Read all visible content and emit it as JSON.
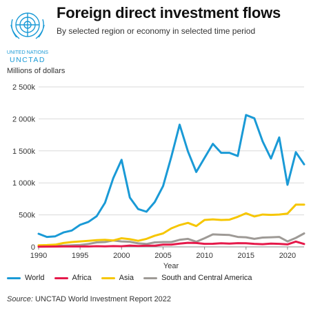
{
  "org": {
    "line1": "UNITED NATIONS",
    "line2": "UNCTAD"
  },
  "colors": {
    "World": "#1a9ad6",
    "Africa": "#e5194a",
    "Asia": "#f6c600",
    "South and Central America": "#9e9a96",
    "grid": "#d9d9d9",
    "axis": "#888888",
    "logo": "#1a9ad6"
  },
  "chart_data": {
    "type": "line",
    "title": "Foreign direct investment flows",
    "subtitle": "By selected region or economy in selected time period",
    "ylabel": "Millions of dollars",
    "xlabel": "Year",
    "x": [
      1990,
      1991,
      1992,
      1993,
      1994,
      1995,
      1996,
      1997,
      1998,
      1999,
      2000,
      2001,
      2002,
      2003,
      2004,
      2005,
      2006,
      2007,
      2008,
      2009,
      2010,
      2011,
      2012,
      2013,
      2014,
      2015,
      2016,
      2017,
      2018,
      2019,
      2020,
      2021,
      2022
    ],
    "xlim": [
      1990,
      2022
    ],
    "ylim": [
      0,
      2500000
    ],
    "xticks": [
      1990,
      1995,
      2000,
      2005,
      2010,
      2015,
      2020
    ],
    "yticks": [
      0,
      500000,
      1000000,
      1500000,
      2000000,
      2500000
    ],
    "ytick_labels": [
      "0",
      "500k",
      "1 000k",
      "1 500k",
      "2 000k",
      "2 500k"
    ],
    "grid": "horizontal",
    "legend_position": "bottom",
    "series": [
      {
        "name": "World",
        "values": [
          205000,
          155000,
          165000,
          225000,
          255000,
          345000,
          390000,
          480000,
          690000,
          1075000,
          1360000,
          770000,
          590000,
          550000,
          700000,
          950000,
          1410000,
          1910000,
          1490000,
          1170000,
          1390000,
          1610000,
          1470000,
          1470000,
          1420000,
          2060000,
          2010000,
          1650000,
          1380000,
          1710000,
          970000,
          1480000,
          1290000
        ]
      },
      {
        "name": "Africa",
        "values": [
          3000,
          4000,
          5000,
          6000,
          6000,
          6000,
          6000,
          11000,
          9000,
          12000,
          10000,
          20000,
          13000,
          19000,
          18000,
          35000,
          36000,
          51000,
          64000,
          60000,
          47000,
          48000,
          56000,
          52000,
          58000,
          56000,
          47000,
          42000,
          51000,
          47000,
          39000,
          83000,
          45000
        ]
      },
      {
        "name": "Asia",
        "values": [
          25000,
          28000,
          35000,
          60000,
          75000,
          85000,
          95000,
          105000,
          110000,
          100000,
          135000,
          120000,
          95000,
          125000,
          175000,
          210000,
          290000,
          340000,
          375000,
          325000,
          420000,
          430000,
          420000,
          425000,
          470000,
          525000,
          475000,
          505000,
          500000,
          505000,
          520000,
          660000,
          660000
        ]
      },
      {
        "name": "South and Central America",
        "values": [
          10000,
          15000,
          18000,
          18000,
          25000,
          30000,
          45000,
          70000,
          75000,
          100000,
          85000,
          80000,
          55000,
          45000,
          70000,
          75000,
          75000,
          110000,
          125000,
          80000,
          135000,
          195000,
          190000,
          185000,
          155000,
          150000,
          125000,
          145000,
          150000,
          155000,
          85000,
          140000,
          210000
        ]
      }
    ]
  },
  "source": {
    "label": "Source:",
    "text": "UNCTAD World Investment Report 2022"
  }
}
